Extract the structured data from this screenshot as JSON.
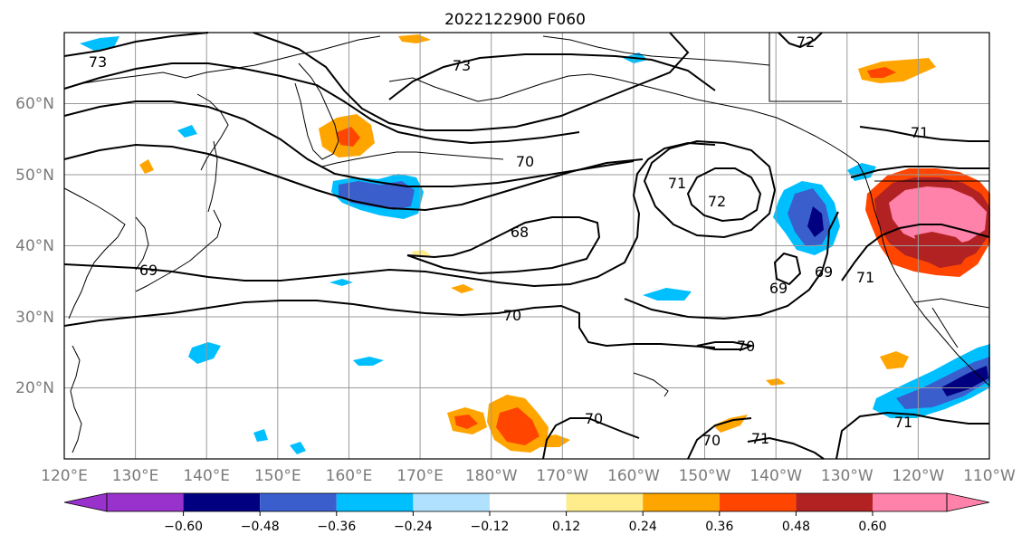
{
  "map": {
    "title": "2022122900 F060",
    "lon_labels": [
      "120°E",
      "130°E",
      "140°E",
      "150°E",
      "160°E",
      "170°E",
      "180°W",
      "170°W",
      "160°W",
      "150°W",
      "140°W",
      "130°W",
      "120°W",
      "110°W"
    ],
    "lat_labels": [
      "60°N",
      "50°N",
      "40°N",
      "30°N",
      "20°N"
    ],
    "extent": {
      "lon": [
        120,
        250
      ],
      "lat": [
        10,
        70
      ]
    },
    "gridlines": true,
    "contour_labels": [
      "73",
      "73",
      "72",
      "71",
      "71",
      "72",
      "70",
      "68",
      "69",
      "69",
      "69",
      "71",
      "70",
      "70",
      "70",
      "71",
      "70",
      "71"
    ]
  },
  "colorbar": {
    "tick_labels": [
      "−0.60",
      "−0.48",
      "−0.36",
      "−0.24",
      "−0.12",
      "0.12",
      "0.24",
      "0.36",
      "0.48",
      "0.60"
    ],
    "colors": [
      "#9932cc",
      "#000080",
      "#3a5fcd",
      "#00bfff",
      "#b0e2ff",
      "#ffffff",
      "#ffec8b",
      "#ffa500",
      "#ff4500",
      "#b22222",
      "#ff82ab",
      "#ff82ab"
    ],
    "extend": "both"
  },
  "colors": {
    "contour": "#000000",
    "grid": "#9a9a9a",
    "coast": "#000000"
  }
}
